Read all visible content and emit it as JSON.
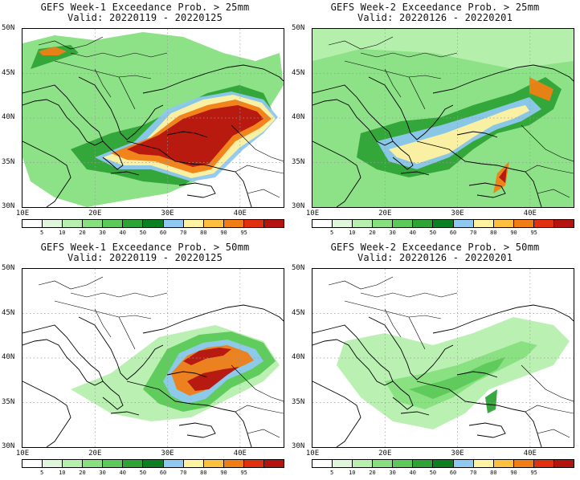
{
  "colors": {
    "scale": [
      "#ffffff",
      "#e0f7dc",
      "#b6efae",
      "#87df7f",
      "#5cc95a",
      "#2ea336",
      "#0c8020",
      "#8fc8f0",
      "#fff2a0",
      "#ffc040",
      "#f07e14",
      "#e03010",
      "#b41410",
      "#a02a2a"
    ]
  },
  "colorbar": {
    "ticks": [
      "5",
      "10",
      "20",
      "30",
      "40",
      "50",
      "60",
      "70",
      "80",
      "90",
      "95"
    ]
  },
  "axes": {
    "lat_labels": [
      "50N",
      "45N",
      "40N",
      "35N",
      "30N"
    ],
    "lon_labels": [
      "10E",
      "20E",
      "30E",
      "40E"
    ]
  },
  "panels": [
    {
      "title": "GEFS Week-1 Exceedance Prob. > 25mm",
      "valid": "Valid: 20220119 - 20220125"
    },
    {
      "title": "GEFS Week-2 Exceedance Prob. > 25mm",
      "valid": "Valid: 20220126 - 20220201"
    },
    {
      "title": "GEFS Week-1 Exceedance Prob. > 50mm",
      "valid": "Valid: 20220119 - 20220125"
    },
    {
      "title": "GEFS Week-2 Exceedance Prob. > 50mm",
      "valid": "Valid: 20220126 - 20220201"
    }
  ]
}
